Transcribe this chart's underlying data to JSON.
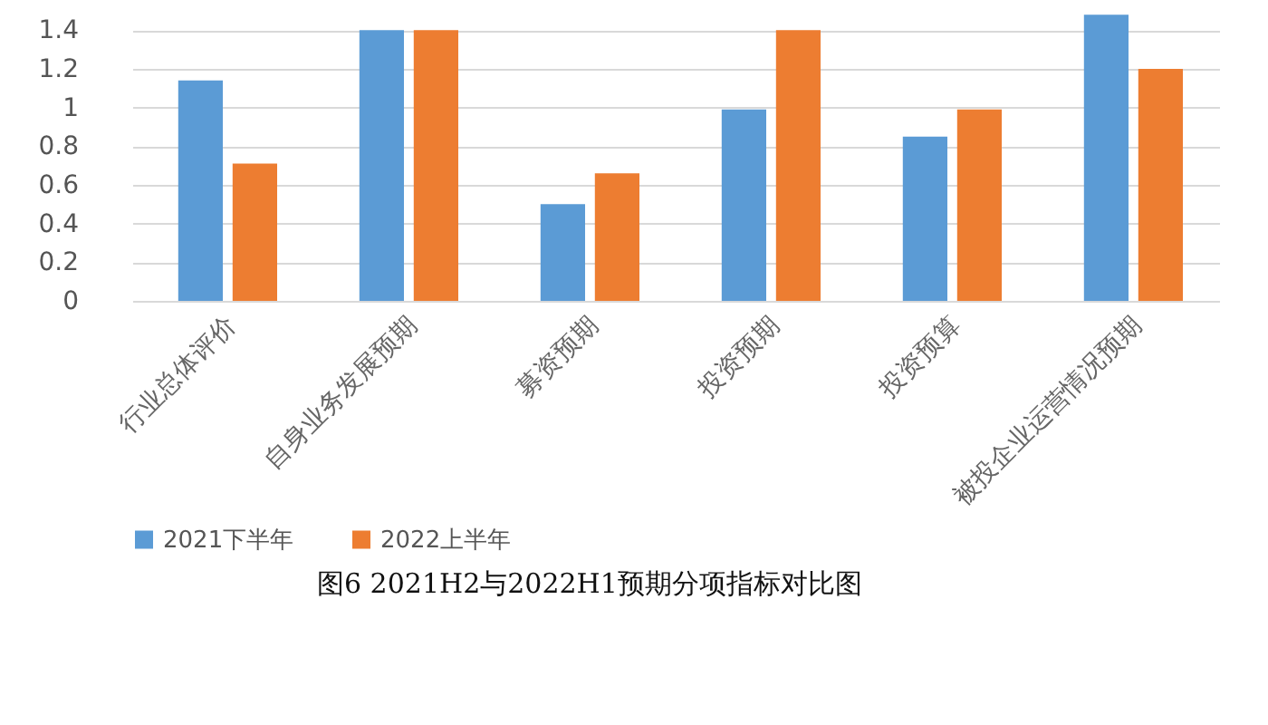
{
  "chart_data": {
    "type": "bar",
    "categories": [
      "行业总体评价",
      "自身业务发展预期",
      "募资预期",
      "投资预期",
      "投资预算",
      "被投企业运营情况预期"
    ],
    "series": [
      {
        "name": "2021下半年",
        "color": "#5b9bd5",
        "values": [
          1.14,
          1.4,
          0.5,
          0.99,
          0.85,
          1.48
        ]
      },
      {
        "name": "2022上半年",
        "color": "#ed7d31",
        "values": [
          0.71,
          1.4,
          0.66,
          1.4,
          0.99,
          1.2
        ]
      }
    ],
    "ylim": [
      0,
      1.5
    ],
    "yticks": [
      0,
      0.2,
      0.4,
      0.6,
      0.8,
      1,
      1.2,
      1.4
    ],
    "grid": "y",
    "legend": "bottom",
    "annotations": [
      "图6  2021H2与2022H1预期分项指标对比图"
    ]
  }
}
